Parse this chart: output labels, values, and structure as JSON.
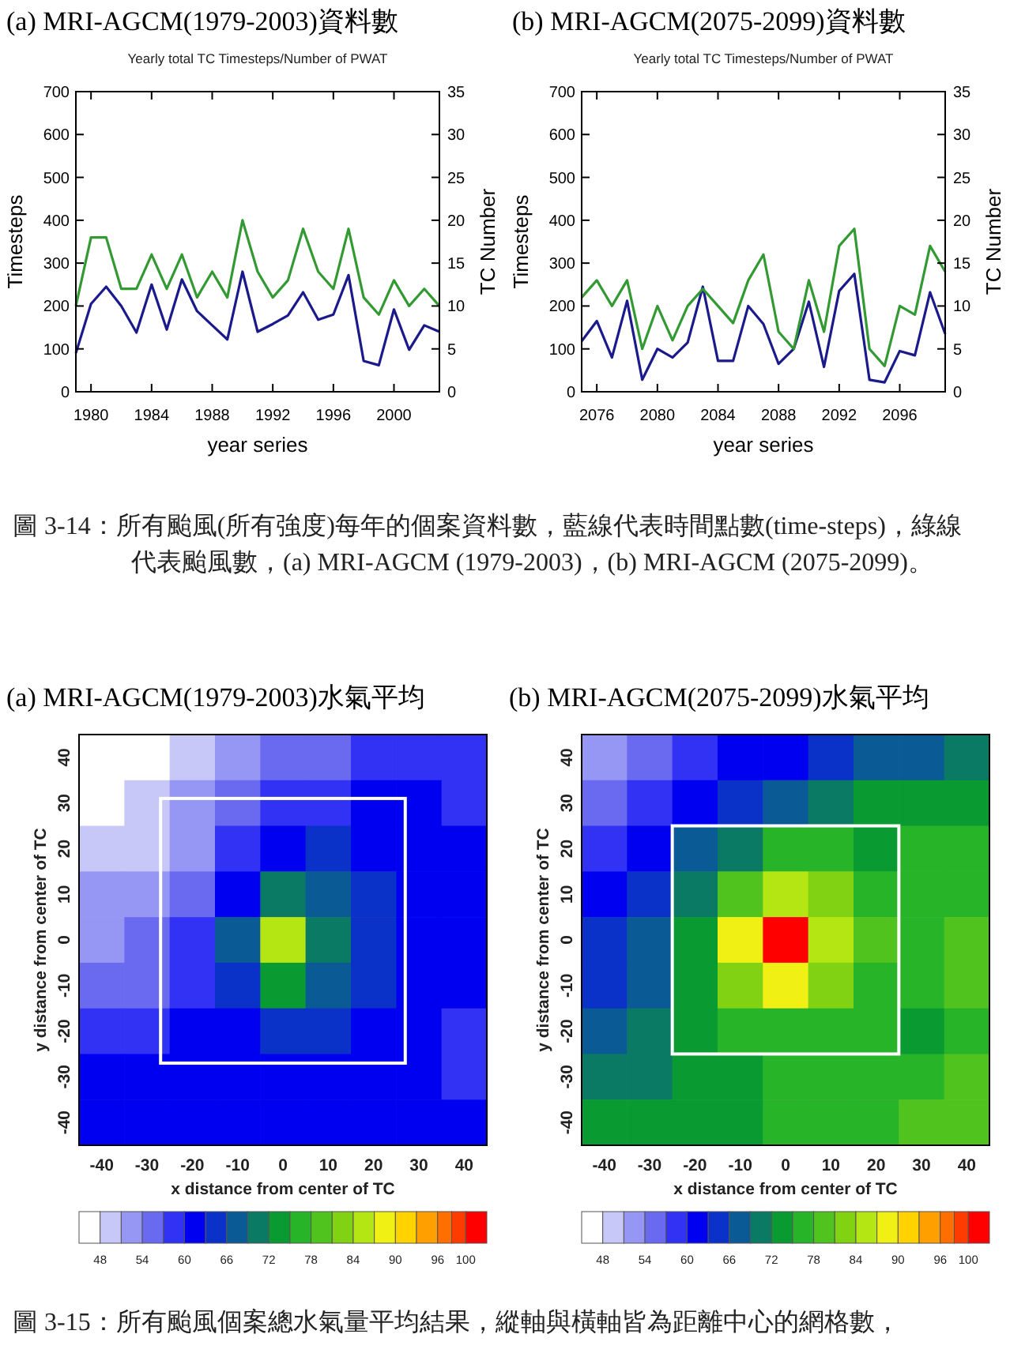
{
  "chart_data": [
    {
      "type": "line",
      "title": "(a) MRI-AGCM(1979-2003)資料數",
      "subtitle": "Yearly total TC Timesteps/Number of PWAT",
      "xlabel": "year series",
      "ylabel": "Timesteps",
      "y2label": "TC Number",
      "x": [
        1979,
        1980,
        1981,
        1982,
        1983,
        1984,
        1985,
        1986,
        1987,
        1988,
        1989,
        1990,
        1991,
        1992,
        1993,
        1994,
        1995,
        1996,
        1997,
        1998,
        1999,
        2000,
        2001,
        2002,
        2003
      ],
      "series": [
        {
          "color": "#1a1a8c",
          "values": [
            90,
            205,
            245,
            200,
            138,
            250,
            145,
            262,
            188,
            155,
            122,
            280,
            140,
            158,
            178,
            232,
            168,
            180,
            272,
            72,
            62,
            192,
            98,
            155,
            140
          ]
        },
        {
          "color": "#339933",
          "axis": "y2",
          "values": [
            10,
            18,
            18,
            12,
            12,
            16,
            12,
            16,
            11,
            14,
            11,
            20,
            14,
            11,
            13,
            19,
            14,
            12,
            19,
            11,
            9,
            13,
            10,
            12,
            10
          ]
        }
      ],
      "xlim": [
        1979,
        2003
      ],
      "xticks": [
        1980,
        1984,
        1988,
        1992,
        1996,
        2000
      ],
      "ylim": [
        0,
        700
      ],
      "yticks": [
        0,
        100,
        200,
        300,
        400,
        500,
        600,
        700
      ],
      "y2lim": [
        0,
        35
      ],
      "y2ticks": [
        0,
        5,
        10,
        15,
        20,
        25,
        30,
        35
      ]
    },
    {
      "type": "line",
      "title": "(b) MRI-AGCM(2075-2099)資料數",
      "subtitle": "Yearly total TC Timesteps/Number of PWAT",
      "xlabel": "year series",
      "ylabel": "Timesteps",
      "y2label": "TC Number",
      "x": [
        2075,
        2076,
        2077,
        2078,
        2079,
        2080,
        2081,
        2082,
        2083,
        2084,
        2085,
        2086,
        2087,
        2088,
        2089,
        2090,
        2091,
        2092,
        2093,
        2094,
        2095,
        2096,
        2097,
        2098,
        2099
      ],
      "series": [
        {
          "color": "#1a1a8c",
          "values": [
            118,
            165,
            80,
            212,
            28,
            100,
            80,
            115,
            245,
            72,
            72,
            200,
            158,
            65,
            100,
            210,
            58,
            235,
            275,
            28,
            22,
            95,
            85,
            232,
            135
          ]
        },
        {
          "color": "#339933",
          "axis": "y2",
          "values": [
            11,
            13,
            10,
            13,
            5,
            10,
            6,
            10,
            12,
            10,
            8,
            13,
            16,
            7,
            5,
            13,
            7,
            17,
            19,
            5,
            3,
            10,
            9,
            17,
            14
          ]
        }
      ],
      "xlim": [
        2075,
        2099
      ],
      "xticks": [
        2076,
        2080,
        2084,
        2088,
        2092,
        2096
      ],
      "ylim": [
        0,
        700
      ],
      "yticks": [
        0,
        100,
        200,
        300,
        400,
        500,
        600,
        700
      ],
      "y2lim": [
        0,
        35
      ],
      "y2ticks": [
        0,
        5,
        10,
        15,
        20,
        25,
        30,
        35
      ],
      "annotations": [
        "圖 3-14：所有颱風(所有強度)每年的個案資料數，藍線代表時間點數(time-steps)，綠線代表颱風數，(a) MRI-AGCM (1979-2003)，(b) MRI-AGCM (2075-2099)。"
      ]
    },
    {
      "type": "heatmap",
      "title": "(a) MRI-AGCM(1979-2003)水氣平均",
      "xlabel": "x  distance from center of TC",
      "ylabel": "y distance from center of TC",
      "categories": [
        "-40",
        "-30",
        "-20",
        "-10",
        "0",
        "10",
        "20",
        "30",
        "40"
      ],
      "y_categories": [
        "40",
        "30",
        "20",
        "10",
        "0",
        "-10",
        "-20",
        "-30",
        "-40"
      ],
      "cells": [
        [
          46,
          46,
          50,
          52,
          55,
          56,
          58,
          58,
          59
        ],
        [
          46,
          50,
          53,
          56,
          59,
          59,
          61,
          61,
          59
        ],
        [
          49,
          50,
          53,
          58,
          62,
          64,
          62,
          61,
          60
        ],
        [
          52,
          53,
          56,
          62,
          70,
          68,
          64,
          61,
          60
        ],
        [
          53,
          54,
          58,
          67,
          86,
          71,
          64,
          62,
          60
        ],
        [
          55,
          56,
          59,
          65,
          74,
          68,
          63,
          61,
          60
        ],
        [
          58,
          58,
          61,
          62,
          63,
          63,
          62,
          60,
          59
        ],
        [
          61,
          61,
          61,
          62,
          62,
          61,
          61,
          60,
          59
        ],
        [
          62,
          62,
          62,
          62,
          62,
          61,
          61,
          60,
          60
        ]
      ],
      "cticks": [
        48,
        {
          "value": 51,
          "label": null
        },
        54,
        {
          "value": 57,
          "label": null
        },
        60,
        {
          "value": 63,
          "label": null
        },
        66,
        {
          "value": 69,
          "label": null
        },
        72,
        {
          "value": 75,
          "label": null
        },
        78,
        {
          "value": 81,
          "label": null
        },
        84,
        {
          "value": 87,
          "label": null
        },
        90,
        {
          "value": 93,
          "label": null
        },
        96,
        {
          "value": 98,
          "label": null
        },
        100
      ],
      "clim": [
        45,
        103
      ]
    },
    {
      "type": "heatmap",
      "title": "(b) MRI-AGCM(2075-2099)水氣平均",
      "xlabel": "x  distance from center of TC",
      "ylabel": "y distance from center of TC",
      "categories": [
        "-40",
        "-30",
        "-20",
        "-10",
        "0",
        "10",
        "20",
        "30",
        "40"
      ],
      "y_categories": [
        "40",
        "30",
        "20",
        "10",
        "0",
        "-10",
        "-20",
        "-30",
        "-40"
      ],
      "cells": [
        [
          53,
          56,
          59,
          61,
          62,
          65,
          67,
          68,
          70
        ],
        [
          56,
          59,
          62,
          65,
          68,
          71,
          73,
          74,
          74
        ],
        [
          59,
          62,
          67,
          71,
          77,
          75,
          74,
          76,
          76
        ],
        [
          61,
          64,
          70,
          80,
          86,
          82,
          77,
          76,
          77
        ],
        [
          64,
          67,
          73,
          88,
          101,
          85,
          79,
          77,
          78
        ],
        [
          65,
          68,
          74,
          82,
          88,
          82,
          77,
          76,
          78
        ],
        [
          68,
          70,
          73,
          75,
          77,
          76,
          75,
          74,
          77
        ],
        [
          71,
          71,
          74,
          74,
          75,
          75,
          76,
          77,
          78
        ],
        [
          73,
          73,
          74,
          74,
          75,
          75,
          76,
          78,
          78
        ]
      ],
      "cticks": [
        48,
        {
          "value": 51,
          "label": null
        },
        54,
        {
          "value": 57,
          "label": null
        },
        60,
        {
          "value": 63,
          "label": null
        },
        66,
        {
          "value": 69,
          "label": null
        },
        72,
        {
          "value": 75,
          "label": null
        },
        78,
        {
          "value": 81,
          "label": null
        },
        84,
        {
          "value": 87,
          "label": null
        },
        90,
        {
          "value": 93,
          "label": null
        },
        96,
        {
          "value": 98,
          "label": null
        },
        100
      ],
      "clim": [
        45,
        103
      ],
      "annotations": [
        "圖 3-15：所有颱風個案總水氣量平均結果，縱軸與橫軸皆為距離中心的網格數，"
      ]
    }
  ]
}
